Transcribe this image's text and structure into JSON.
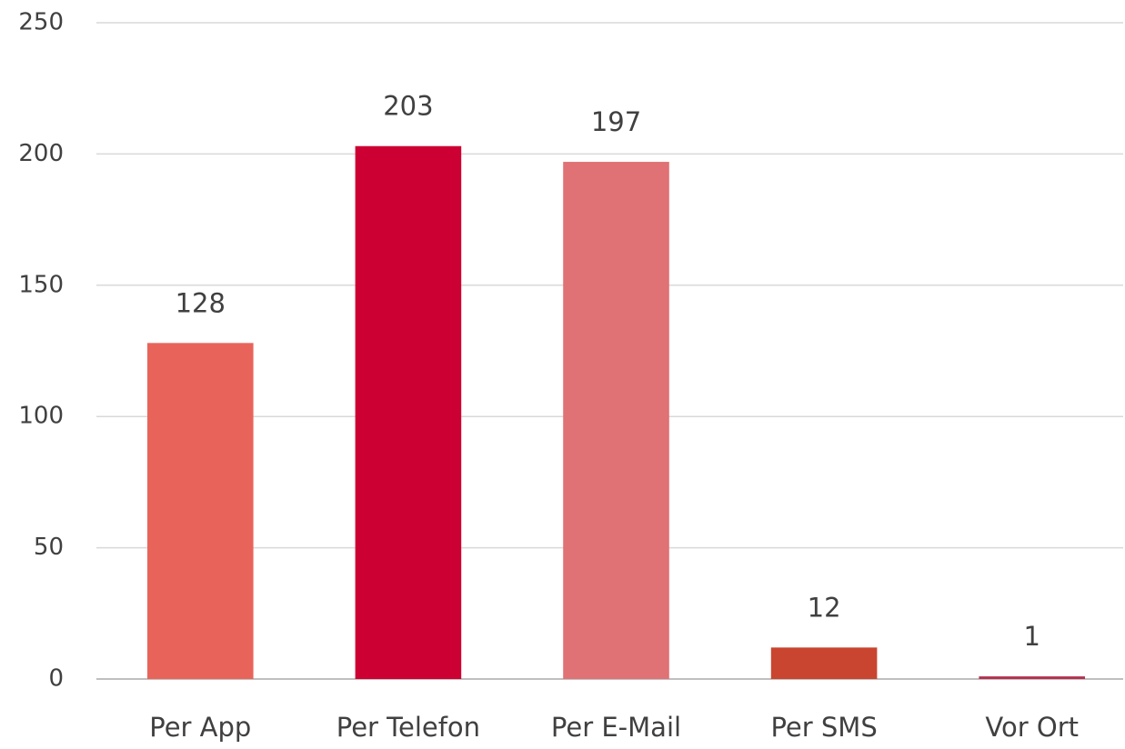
{
  "chart_data": {
    "type": "bar",
    "categories": [
      "Per App",
      "Per Telefon",
      "Per E-Mail",
      "Per SMS",
      "Vor Ort"
    ],
    "values": [
      128,
      203,
      197,
      12,
      1
    ],
    "colors": [
      "#e8645a",
      "#cc0033",
      "#e07174",
      "#c9452f",
      "#b5304f"
    ],
    "ylim": [
      0,
      250
    ],
    "yticks": [
      0,
      50,
      100,
      150,
      200,
      250
    ],
    "grid": true
  }
}
